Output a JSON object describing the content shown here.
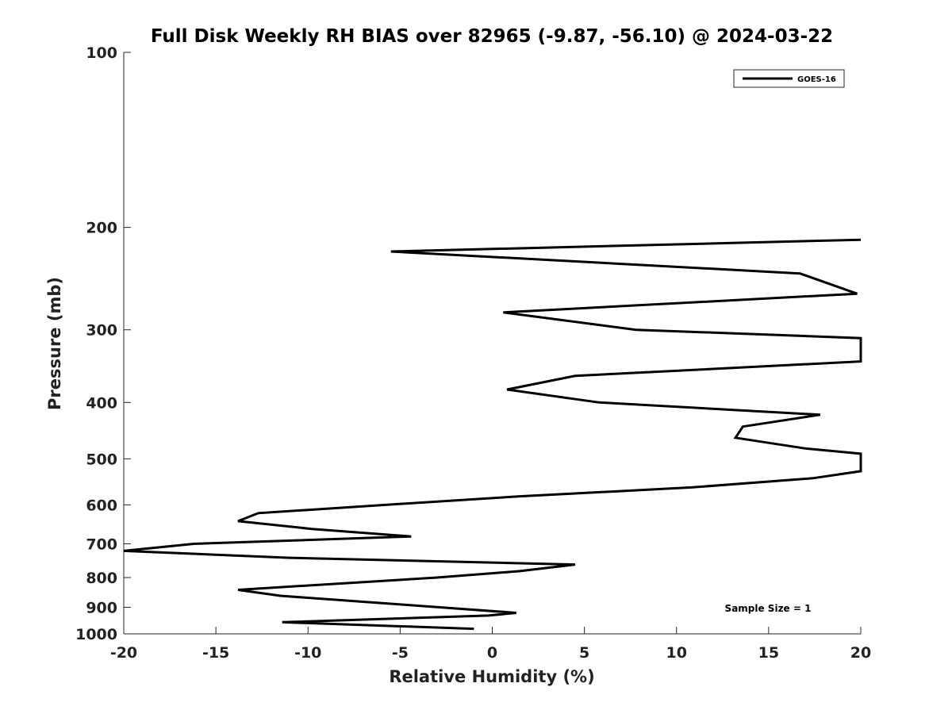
{
  "chart_data": {
    "type": "line",
    "title": "Full Disk Weekly RH BIAS over 82965 (-9.87, -56.10) @ 2024-03-22",
    "xlabel": "Relative Humidity (%)",
    "ylabel": "Pressure (mb)",
    "xlim": [
      -20,
      20
    ],
    "ylim": [
      100,
      1000
    ],
    "y_scale": "log",
    "y_reversed": true,
    "x_ticks": [
      -20,
      -15,
      -10,
      -5,
      0,
      5,
      10,
      15,
      20
    ],
    "y_ticks": [
      100,
      200,
      300,
      400,
      500,
      600,
      700,
      800,
      900,
      1000
    ],
    "legend_position": "top-right",
    "grid": false,
    "annotation": "Sample Size = 1",
    "series": [
      {
        "name": "GOES-16",
        "color": "#000000",
        "points": [
          {
            "x": 20.0,
            "y": 210
          },
          {
            "x": -5.5,
            "y": 220
          },
          {
            "x": 16.7,
            "y": 240
          },
          {
            "x": 19.8,
            "y": 260
          },
          {
            "x": 0.6,
            "y": 280
          },
          {
            "x": 7.8,
            "y": 300
          },
          {
            "x": 20.0,
            "y": 310
          },
          {
            "x": 20.0,
            "y": 340
          },
          {
            "x": 4.5,
            "y": 360
          },
          {
            "x": 0.8,
            "y": 380
          },
          {
            "x": 5.8,
            "y": 400
          },
          {
            "x": 17.8,
            "y": 420
          },
          {
            "x": 13.6,
            "y": 440
          },
          {
            "x": 13.2,
            "y": 460
          },
          {
            "x": 17.0,
            "y": 480
          },
          {
            "x": 20.0,
            "y": 490
          },
          {
            "x": 20.0,
            "y": 525
          },
          {
            "x": 17.4,
            "y": 540
          },
          {
            "x": 10.8,
            "y": 560
          },
          {
            "x": 1.5,
            "y": 580
          },
          {
            "x": -5.8,
            "y": 600
          },
          {
            "x": -12.7,
            "y": 620
          },
          {
            "x": -13.8,
            "y": 640
          },
          {
            "x": -9.8,
            "y": 660
          },
          {
            "x": -4.4,
            "y": 680
          },
          {
            "x": -16.2,
            "y": 700
          },
          {
            "x": -20.0,
            "y": 720
          },
          {
            "x": -11.0,
            "y": 740
          },
          {
            "x": 4.5,
            "y": 760
          },
          {
            "x": 1.5,
            "y": 780
          },
          {
            "x": -3.0,
            "y": 800
          },
          {
            "x": -13.8,
            "y": 840
          },
          {
            "x": -11.5,
            "y": 860
          },
          {
            "x": -5.0,
            "y": 890
          },
          {
            "x": 1.3,
            "y": 920
          },
          {
            "x": -0.2,
            "y": 930
          },
          {
            "x": -11.4,
            "y": 955
          },
          {
            "x": -1.0,
            "y": 980
          }
        ]
      }
    ]
  }
}
